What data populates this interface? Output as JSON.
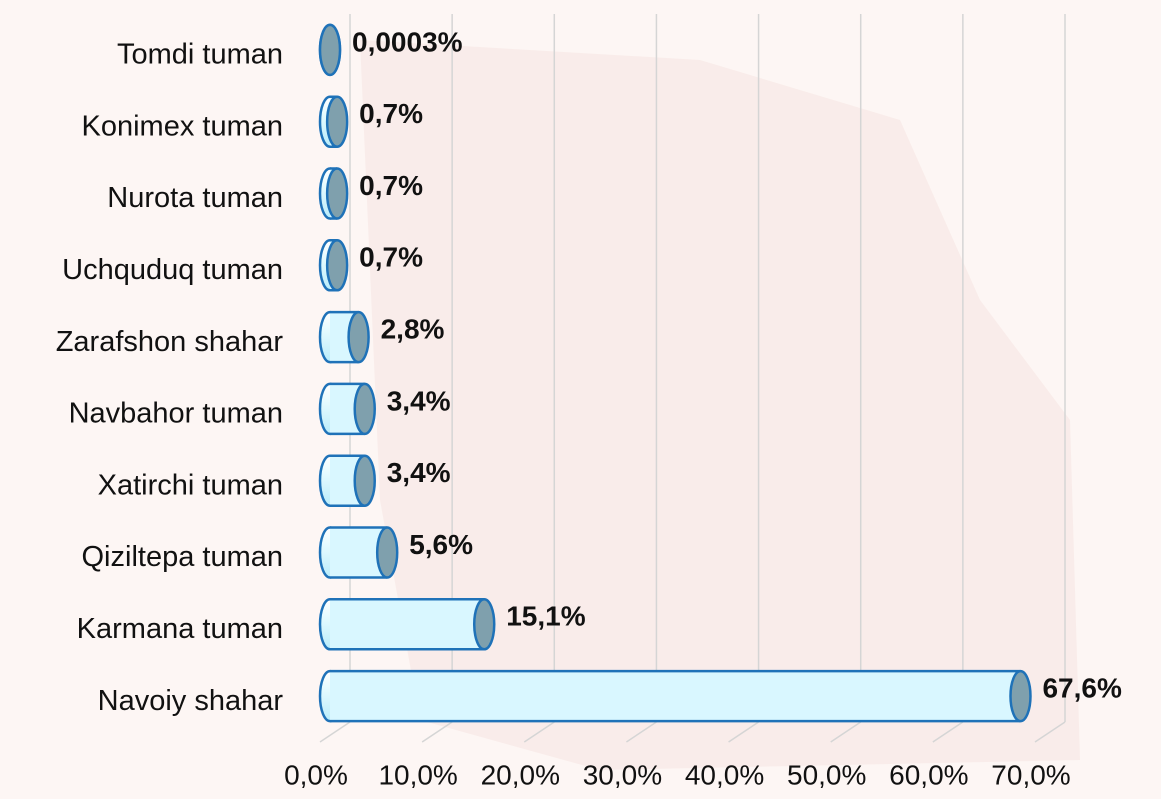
{
  "chart_data": {
    "type": "bar",
    "orientation": "horizontal",
    "categories": [
      "Tomdi tuman",
      "Konimex tuman",
      "Nurota tuman",
      "Uchquduq tuman",
      "Zarafshon shahar",
      "Navbahor tuman",
      "Xatirchi tuman",
      "Qiziltepa tuman",
      "Karmana tuman",
      "Navoiy shahar"
    ],
    "values": [
      0.0003,
      0.7,
      0.7,
      0.7,
      2.8,
      3.4,
      3.4,
      5.6,
      15.1,
      67.6
    ],
    "value_labels": [
      "0,0003%",
      "0,7%",
      "0,7%",
      "0,7%",
      "2,8%",
      "3,4%",
      "3,4%",
      "5,6%",
      "15,1%",
      "67,6%"
    ],
    "color": "#d9f7ff",
    "xlim": [
      0,
      70
    ],
    "xticks": [
      {
        "value": 0,
        "label": "0,0%"
      },
      {
        "value": 10,
        "label": "10,0%"
      },
      {
        "value": 20,
        "label": "20,0%"
      },
      {
        "value": 30,
        "label": "30,0%"
      },
      {
        "value": 40,
        "label": "40,0%"
      },
      {
        "value": 50,
        "label": "50,0%"
      },
      {
        "value": 60,
        "label": "60,0%"
      },
      {
        "value": 70,
        "label": "70,0%"
      }
    ],
    "grid": true
  }
}
